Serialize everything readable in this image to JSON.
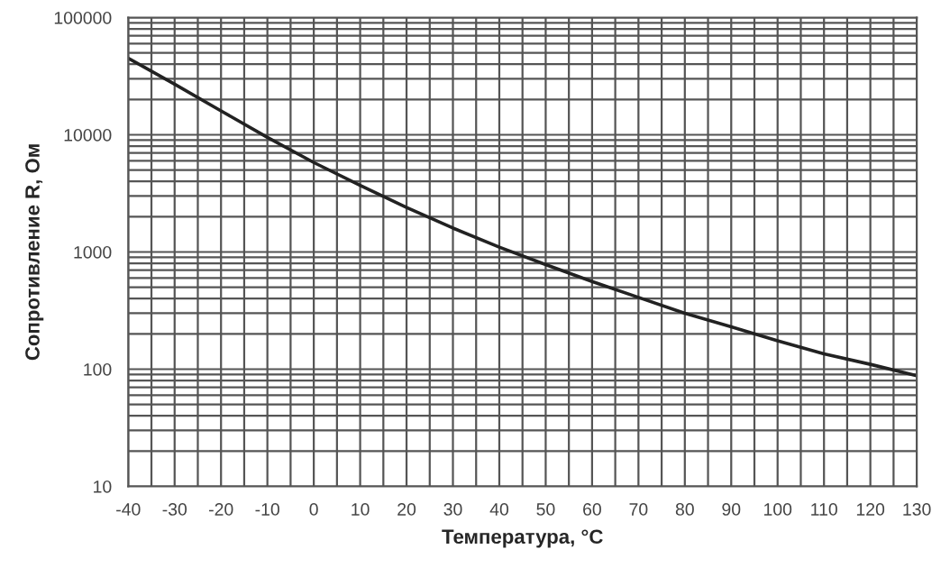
{
  "chart_data": {
    "type": "line",
    "xlabel": "Температура, °C",
    "ylabel": "Сопротивление R, Ом",
    "log": "y",
    "grid": true,
    "marker": "none",
    "line_style": "solid",
    "x": [
      -40,
      -30,
      -20,
      -10,
      0,
      10,
      20,
      30,
      40,
      50,
      60,
      70,
      80,
      90,
      100,
      110,
      120,
      130
    ],
    "series": [
      {
        "color": "#222222",
        "values": [
          45000,
          27000,
          16000,
          9500,
          5800,
          3700,
          2400,
          1600,
          1100,
          780,
          560,
          410,
          300,
          230,
          175,
          135,
          110,
          88
        ]
      }
    ],
    "xlim": [
      -40,
      130
    ],
    "xticks": [
      -40,
      -30,
      -20,
      -10,
      0,
      10,
      20,
      30,
      40,
      50,
      60,
      70,
      80,
      90,
      100,
      110,
      120,
      130
    ],
    "ylim": [
      10,
      100000
    ],
    "yticks": [
      10,
      100,
      1000,
      10000,
      100000
    ]
  }
}
